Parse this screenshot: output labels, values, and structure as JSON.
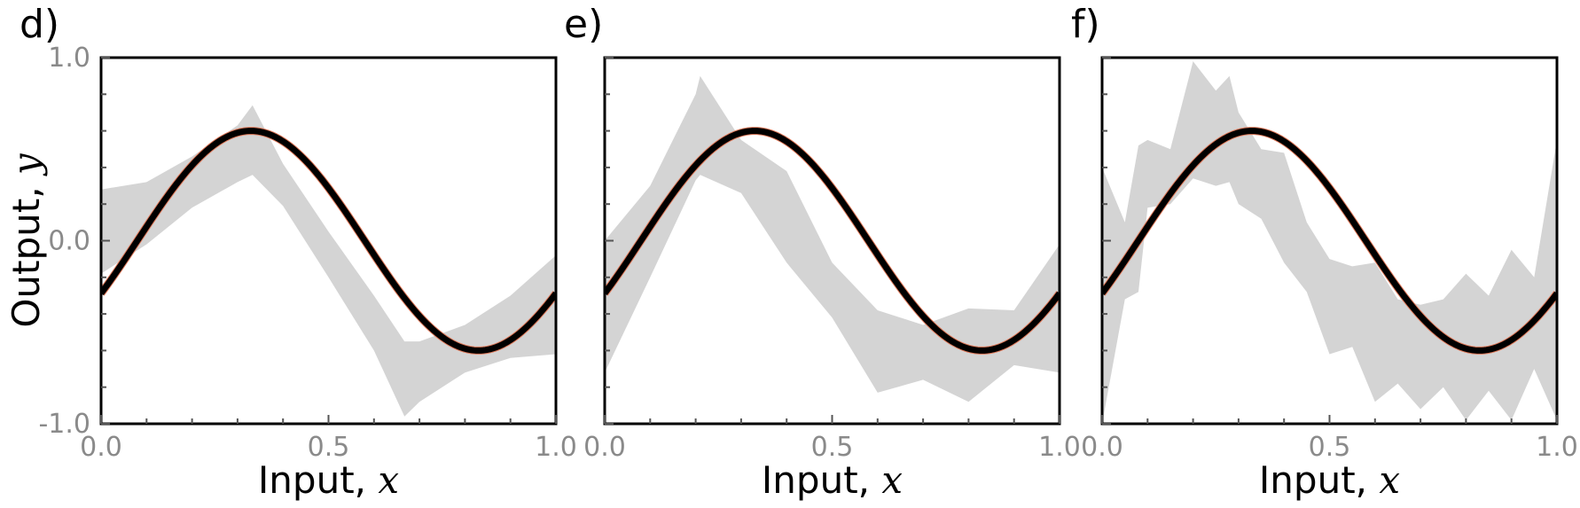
{
  "chart_data": [
    {
      "type": "area",
      "panel": "d)",
      "xlabel": "Input, ",
      "xlabel_var": "x",
      "ylabel": "Output, ",
      "ylabel_var": "y",
      "xlim": [
        0,
        1
      ],
      "ylim": [
        -1,
        1
      ],
      "x_ticks": [
        "0.0",
        "0.5",
        "1.0"
      ],
      "y_ticks": [
        "-1.0",
        "0.0",
        "1.0"
      ],
      "true_function": {
        "amplitude": 0.6,
        "frequency": 1,
        "phase": -0.5
      },
      "band": {
        "x": [
          0.0,
          0.1,
          0.2,
          0.3,
          0.333,
          0.4,
          0.5,
          0.6,
          0.667,
          0.7,
          0.8,
          0.9,
          1.0
        ],
        "upper": [
          0.28,
          0.32,
          0.46,
          0.63,
          0.74,
          0.42,
          0.05,
          -0.3,
          -0.55,
          -0.55,
          -0.46,
          -0.3,
          -0.08
        ],
        "lower": [
          -0.18,
          -0.02,
          0.18,
          0.32,
          0.36,
          0.19,
          -0.2,
          -0.6,
          -0.96,
          -0.88,
          -0.72,
          -0.64,
          -0.62
        ]
      },
      "colors": {
        "band": "#d4d4d4",
        "line": "#000000",
        "accent": "#e0795a"
      }
    },
    {
      "type": "area",
      "panel": "e)",
      "xlabel": "Input, ",
      "xlabel_var": "x",
      "xlim": [
        0,
        1
      ],
      "ylim": [
        -1,
        1
      ],
      "x_ticks": [
        "0.0",
        "0.5",
        "1.0"
      ],
      "true_function": {
        "amplitude": 0.6,
        "frequency": 1,
        "phase": -0.5
      },
      "band": {
        "x": [
          0.0,
          0.1,
          0.2,
          0.21,
          0.3,
          0.4,
          0.5,
          0.6,
          0.7,
          0.8,
          0.9,
          1.0
        ],
        "upper": [
          0.0,
          0.3,
          0.8,
          0.9,
          0.55,
          0.38,
          -0.12,
          -0.38,
          -0.46,
          -0.37,
          -0.38,
          -0.02
        ],
        "lower": [
          -0.72,
          -0.2,
          0.33,
          0.36,
          0.26,
          -0.12,
          -0.42,
          -0.83,
          -0.76,
          -0.88,
          -0.68,
          -0.72
        ]
      },
      "colors": {
        "band": "#d4d4d4",
        "line": "#000000",
        "accent": "#e0795a"
      }
    },
    {
      "type": "area",
      "panel": "f)",
      "xlabel": "Input, ",
      "xlabel_var": "x",
      "xlim": [
        0,
        1
      ],
      "ylim": [
        -1,
        1
      ],
      "x_ticks": [
        "0.0",
        "0.5",
        "1.0"
      ],
      "true_function": {
        "amplitude": 0.6,
        "frequency": 1,
        "phase": -0.5
      },
      "band": {
        "x": [
          0.0,
          0.05,
          0.08,
          0.1,
          0.15,
          0.2,
          0.25,
          0.28,
          0.3,
          0.35,
          0.4,
          0.45,
          0.5,
          0.55,
          0.6,
          0.65,
          0.7,
          0.75,
          0.8,
          0.85,
          0.9,
          0.95,
          1.0
        ],
        "upper": [
          0.4,
          0.1,
          0.52,
          0.55,
          0.5,
          0.98,
          0.82,
          0.9,
          0.7,
          0.5,
          0.48,
          0.1,
          -0.1,
          -0.14,
          -0.12,
          -0.32,
          -0.35,
          -0.32,
          -0.18,
          -0.3,
          -0.05,
          -0.2,
          0.55
        ],
        "lower": [
          -1.0,
          -0.32,
          -0.28,
          0.18,
          0.2,
          0.34,
          0.3,
          0.32,
          0.2,
          0.12,
          -0.12,
          -0.28,
          -0.62,
          -0.58,
          -0.88,
          -0.78,
          -0.92,
          -0.8,
          -0.98,
          -0.82,
          -0.98,
          -0.7,
          -0.98
        ]
      },
      "colors": {
        "band": "#d4d4d4",
        "line": "#000000",
        "accent": "#e0795a"
      }
    }
  ]
}
